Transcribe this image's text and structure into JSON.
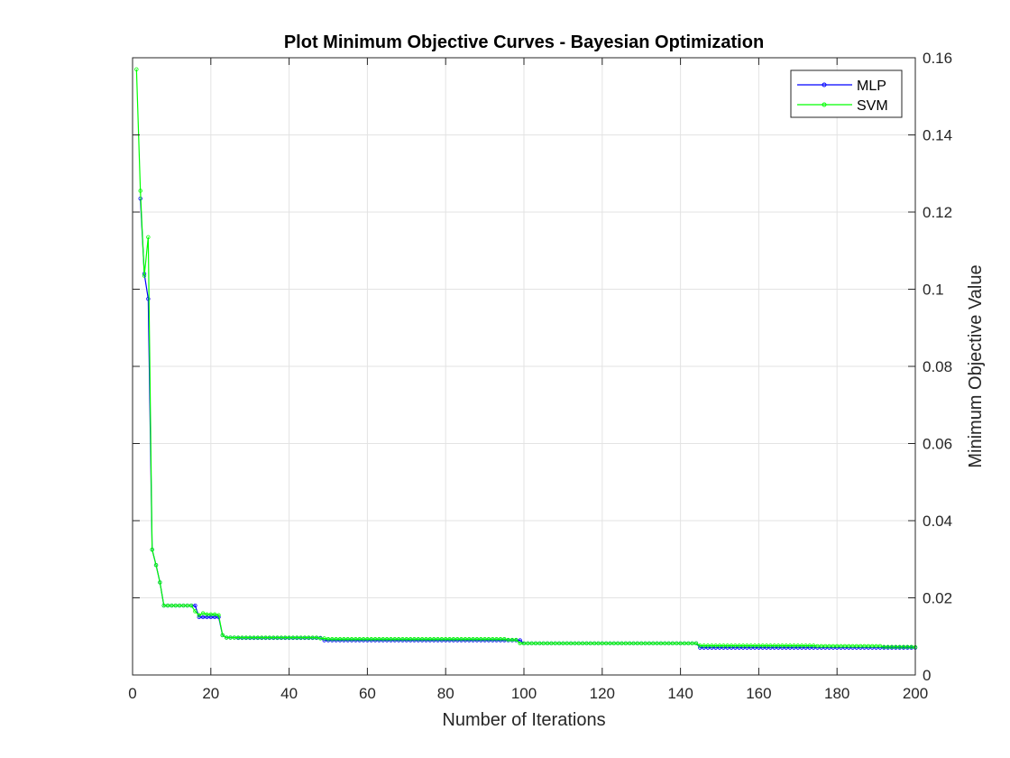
{
  "chart_data": {
    "type": "line",
    "title": "Plot Minimum Objective Curves - Bayesian Optimization",
    "xlabel": "Number of Iterations",
    "ylabel": "Minimum Objective Value",
    "xlim": [
      0,
      200
    ],
    "ylim": [
      0,
      0.16
    ],
    "xticks": [
      "0",
      "20",
      "40",
      "60",
      "80",
      "100",
      "120",
      "140",
      "160",
      "180",
      "200"
    ],
    "yticks": [
      "0",
      "0.02",
      "0.04",
      "0.06",
      "0.08",
      "0.1",
      "0.12",
      "0.14",
      "0.16"
    ],
    "grid": true,
    "y_axis_side": "right",
    "legend_position": "top-right",
    "marker": "circle",
    "series": [
      {
        "name": "MLP",
        "color": "#0000ff",
        "steps": [
          [
            2,
            0.1235
          ],
          [
            3,
            0.104
          ],
          [
            4,
            0.0975
          ],
          [
            5,
            0.0325
          ],
          [
            6,
            0.0285
          ],
          [
            7,
            0.024
          ],
          [
            8,
            0.018
          ],
          [
            17,
            0.015
          ],
          [
            23,
            0.0103
          ],
          [
            24,
            0.0097
          ],
          [
            27,
            0.0096
          ],
          [
            49,
            0.009
          ],
          [
            100,
            0.0082
          ],
          [
            145,
            0.0071
          ],
          [
            200,
            0.0071
          ]
        ]
      },
      {
        "name": "SVM",
        "color": "#00ff00",
        "steps": [
          [
            1,
            0.157
          ],
          [
            2,
            0.1255
          ],
          [
            3,
            0.1035
          ],
          [
            4,
            0.1135
          ],
          [
            5,
            0.0325
          ],
          [
            6,
            0.0285
          ],
          [
            7,
            0.024
          ],
          [
            8,
            0.018
          ],
          [
            16,
            0.0165
          ],
          [
            17,
            0.0155
          ],
          [
            18,
            0.016
          ],
          [
            19,
            0.0157
          ],
          [
            22,
            0.0155
          ],
          [
            23,
            0.0103
          ],
          [
            24,
            0.0097
          ],
          [
            30,
            0.0097
          ],
          [
            48,
            0.0095
          ],
          [
            50,
            0.0093
          ],
          [
            96,
            0.0091
          ],
          [
            99,
            0.0082
          ],
          [
            145,
            0.0076
          ],
          [
            175,
            0.0075
          ],
          [
            192,
            0.0073
          ],
          [
            200,
            0.0072
          ]
        ]
      }
    ]
  }
}
